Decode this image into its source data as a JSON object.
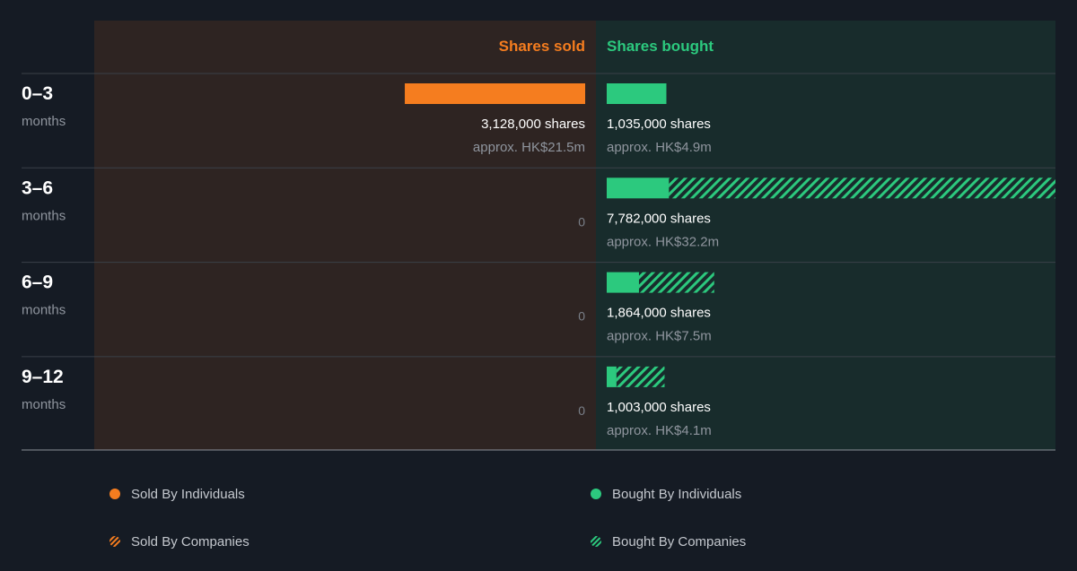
{
  "chart_data": {
    "type": "bar",
    "orientation": "horizontal-diverging",
    "headers": {
      "sold": "Shares sold",
      "bought": "Shares bought"
    },
    "periods": [
      {
        "range": "0–3",
        "unit": "months",
        "sold": {
          "individuals": 3128000,
          "companies": 0,
          "shares_label": "3,128,000 shares",
          "approx_label": "approx. HK$21.5m",
          "zero_label": ""
        },
        "bought": {
          "individuals": 1035000,
          "companies": 0,
          "shares_label": "1,035,000 shares",
          "approx_label": "approx. HK$4.9m"
        }
      },
      {
        "range": "3–6",
        "unit": "months",
        "sold": {
          "individuals": 0,
          "companies": 0,
          "shares_label": "",
          "approx_label": "",
          "zero_label": "0"
        },
        "bought": {
          "individuals": 1080000,
          "companies": 6702000,
          "shares_label": "7,782,000 shares",
          "approx_label": "approx. HK$32.2m"
        }
      },
      {
        "range": "6–9",
        "unit": "months",
        "sold": {
          "individuals": 0,
          "companies": 0,
          "shares_label": "",
          "approx_label": "",
          "zero_label": "0"
        },
        "bought": {
          "individuals": 560000,
          "companies": 1304000,
          "shares_label": "1,864,000 shares",
          "approx_label": "approx. HK$7.5m"
        }
      },
      {
        "range": "9–12",
        "unit": "months",
        "sold": {
          "individuals": 0,
          "companies": 0,
          "shares_label": "",
          "approx_label": "",
          "zero_label": "0"
        },
        "bought": {
          "individuals": 170000,
          "companies": 833000,
          "shares_label": "1,003,000 shares",
          "approx_label": "approx. HK$4.1m"
        }
      }
    ],
    "max_shares": 7782000,
    "legend": [
      {
        "key": "sold-individuals",
        "label": "Sold By Individuals",
        "style": "solid",
        "color": "#f57d1f"
      },
      {
        "key": "bought-individuals",
        "label": "Bought By Individuals",
        "style": "solid",
        "color": "#2cc97e"
      },
      {
        "key": "sold-companies",
        "label": "Sold By Companies",
        "style": "hatched",
        "color": "#f57d1f"
      },
      {
        "key": "bought-companies",
        "label": "Bought By Companies",
        "style": "hatched",
        "color": "#2cc97e"
      }
    ]
  },
  "colors": {
    "sold": "#f57d1f",
    "bought": "#2cc97e",
    "sold_panel": "#2e2422",
    "bought_panel": "#182c2c",
    "background": "#151b24"
  }
}
